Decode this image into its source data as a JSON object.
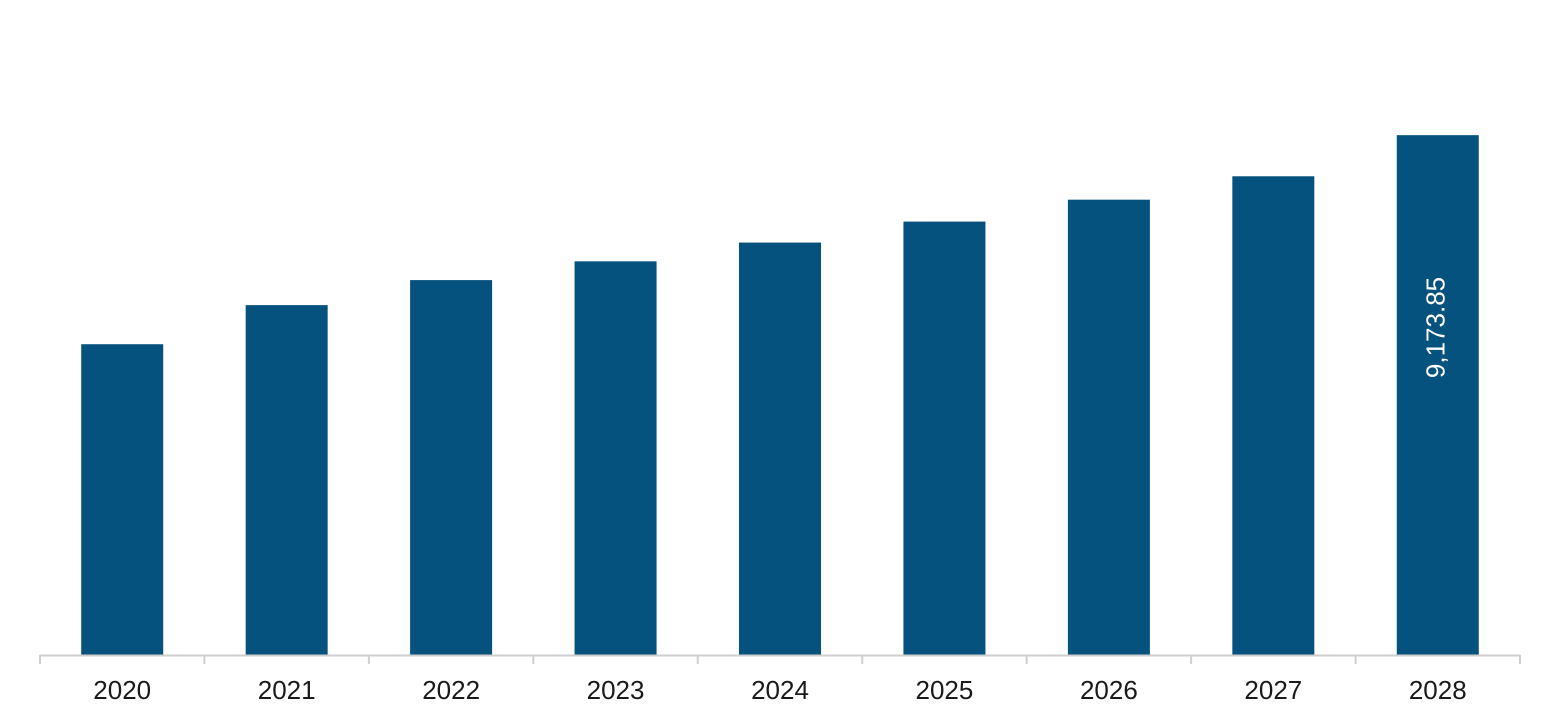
{
  "chart_data": {
    "type": "bar",
    "categories": [
      "2020",
      "2021",
      "2022",
      "2023",
      "2024",
      "2025",
      "2026",
      "2027",
      "2028"
    ],
    "values": [
      5484.5,
      6174.5,
      6616.3,
      6947.2,
      7278.4,
      7648.4,
      8034.9,
      8448.0,
      9173.85
    ],
    "data_labels": [
      {
        "category": "2028",
        "text": "9,173.85"
      }
    ],
    "title": "",
    "xlabel": "",
    "ylabel": "",
    "ylim": [
      0,
      10500
    ],
    "grid": false,
    "legend": "none",
    "colors": {
      "bar": "#06527e",
      "axis": "#cfcfcf",
      "tick_text": "#1a1a1a",
      "label_text": "#ffffff"
    }
  }
}
